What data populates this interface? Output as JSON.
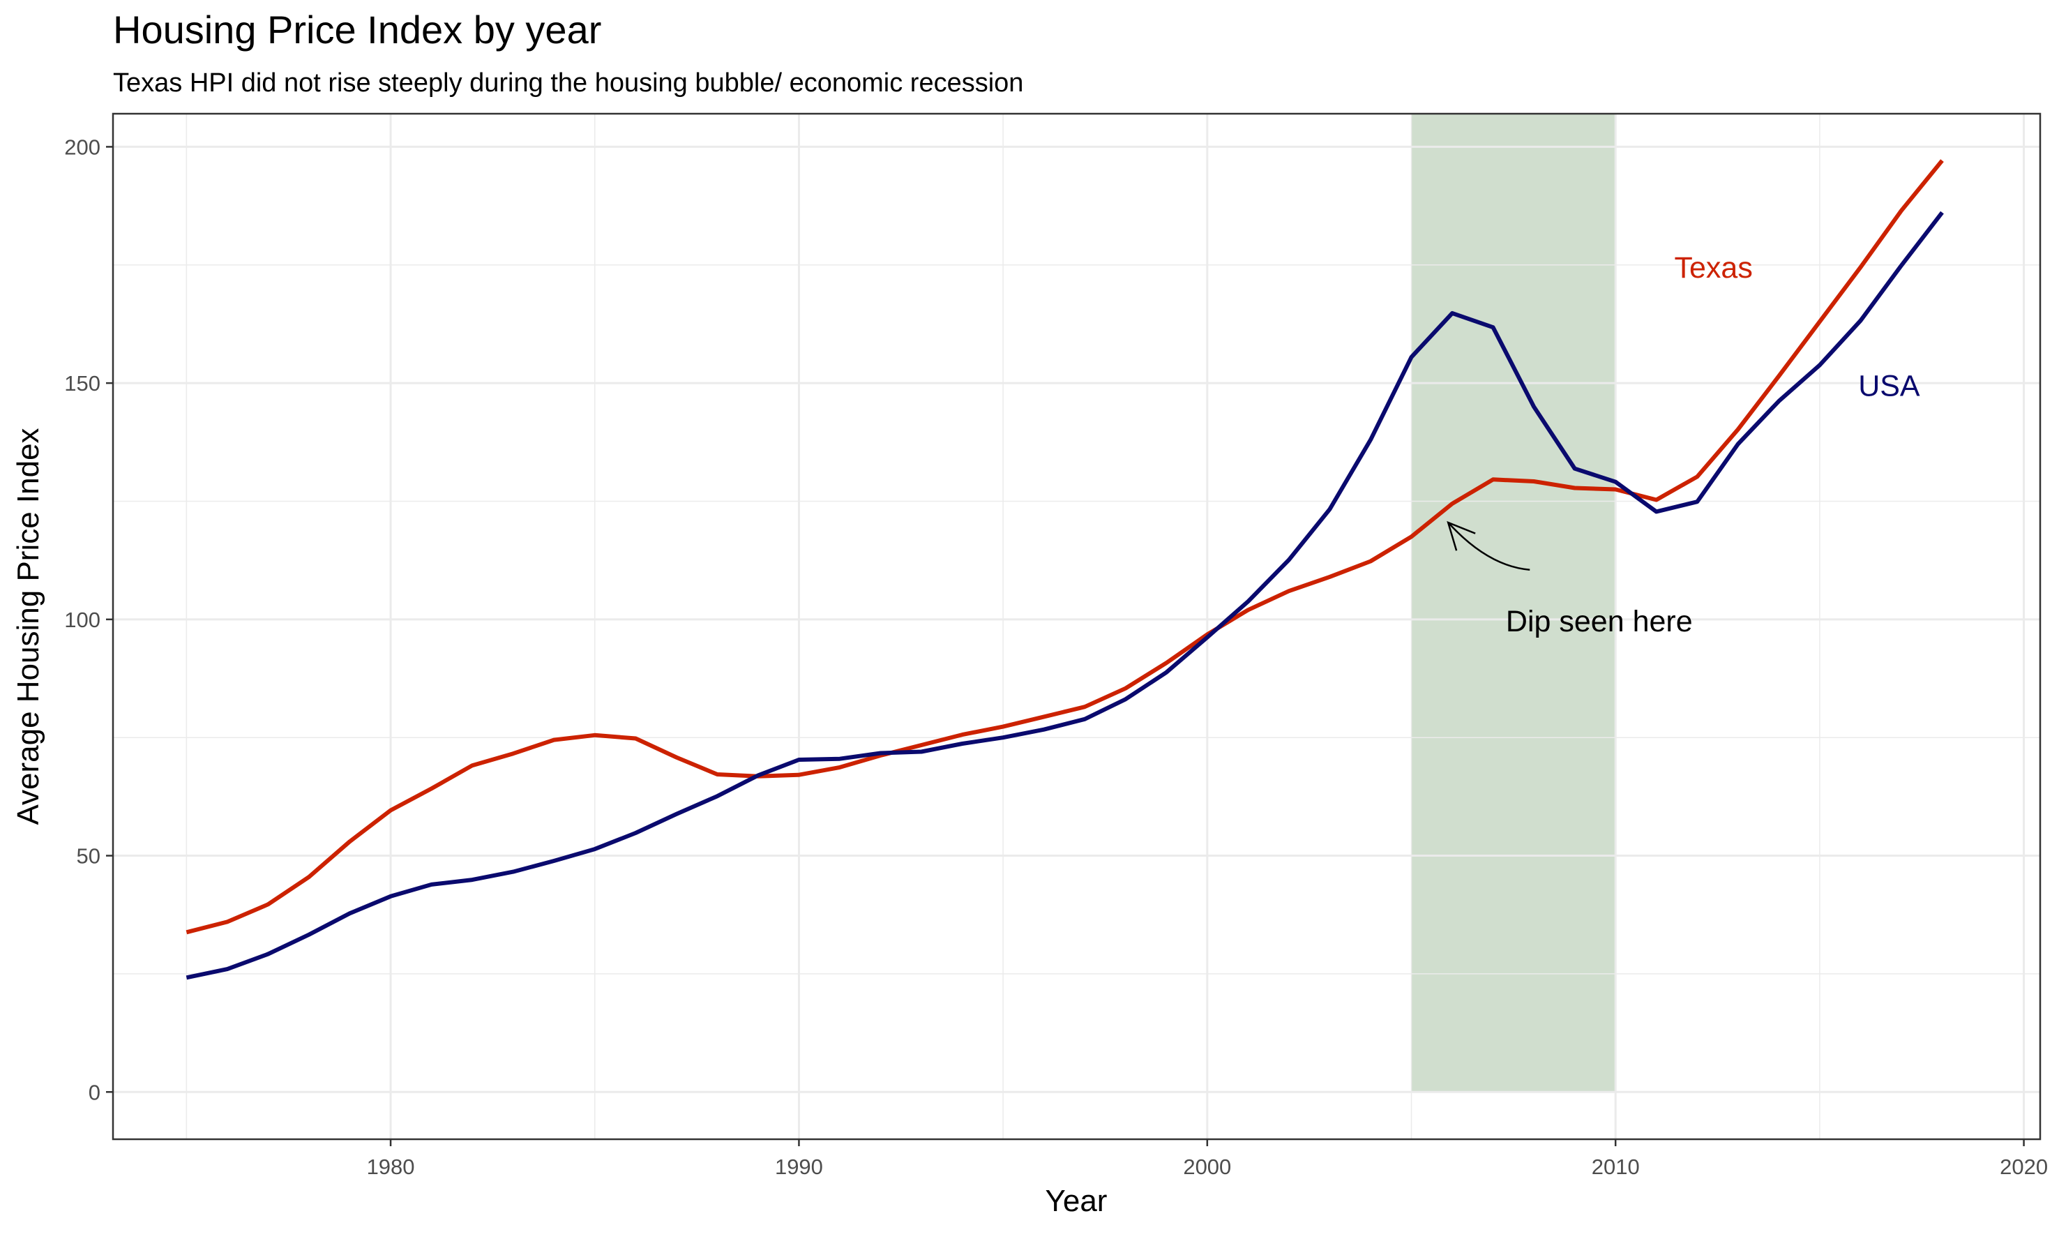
{
  "chart_data": {
    "type": "line",
    "title": "Housing Price Index by year",
    "subtitle": "Texas HPI did not rise steeply during the housing bubble/ economic recession",
    "xlabel": "Year",
    "ylabel": "Average Housing Price Index",
    "xlim": [
      1973.2,
      2020.4
    ],
    "ylim": [
      -10,
      207
    ],
    "x_ticks": [
      1980,
      1990,
      2000,
      2010,
      2020
    ],
    "x_tick_labels": [
      "1980",
      "1990",
      "2000",
      "2010",
      "2020"
    ],
    "x_minor_ticks": [
      1975,
      1985,
      1995,
      2005,
      2015
    ],
    "y_ticks": [
      0,
      50,
      100,
      150,
      200
    ],
    "y_tick_labels": [
      "0",
      "50",
      "100",
      "150",
      "200"
    ],
    "y_minor_ticks": [
      25,
      75,
      125,
      175
    ],
    "grid": true,
    "legend": "none",
    "colors": {
      "texas": "#cc2200",
      "usa": "#0a0a6e",
      "highlight": "#a9c2a6",
      "axis_text": "#4d4d4d",
      "grid": "#ebebeb"
    },
    "highlight_region": {
      "x_start": 2005,
      "x_end": 2010,
      "y_start": 0,
      "y_end": 207
    },
    "series": [
      {
        "name": "Texas",
        "color": "#cc2200",
        "x": [
          1975,
          1976,
          1977,
          1978,
          1979,
          1980,
          1981,
          1982,
          1983,
          1984,
          1985,
          1986,
          1987,
          1988,
          1989,
          1990,
          1991,
          1992,
          1993,
          1994,
          1995,
          1996,
          1997,
          1998,
          1999,
          2000,
          2001,
          2002,
          2003,
          2004,
          2005,
          2006,
          2007,
          2008,
          2009,
          2010,
          2011,
          2012,
          2013,
          2014,
          2015,
          2016,
          2017,
          2018
        ],
        "y": [
          33.8,
          36,
          39.7,
          45.5,
          53,
          59.6,
          64.2,
          69.1,
          71.6,
          74.5,
          75.5,
          74.8,
          70.8,
          67.2,
          66.8,
          67.1,
          68.7,
          71.2,
          73.4,
          75.6,
          77.3,
          79.4,
          81.5,
          85.4,
          90.8,
          96.8,
          102,
          106,
          109,
          112.3,
          117.5,
          124.5,
          129.6,
          129.2,
          127.8,
          127.5,
          125.3,
          130.2,
          140.2,
          151.5,
          163,
          174.5,
          186.5,
          197.1
        ]
      },
      {
        "name": "USA",
        "color": "#0a0a6e",
        "x": [
          1975,
          1976,
          1977,
          1978,
          1979,
          1980,
          1981,
          1982,
          1983,
          1984,
          1985,
          1986,
          1987,
          1988,
          1989,
          1990,
          1991,
          1992,
          1993,
          1994,
          1995,
          1996,
          1997,
          1998,
          1999,
          2000,
          2001,
          2002,
          2003,
          2004,
          2005,
          2006,
          2007,
          2008,
          2009,
          2010,
          2011,
          2012,
          2013,
          2014,
          2015,
          2016,
          2017,
          2018
        ],
        "y": [
          24.2,
          26,
          29.2,
          33.3,
          37.8,
          41.4,
          43.9,
          44.9,
          46.6,
          48.9,
          51.4,
          54.8,
          58.8,
          62.6,
          67,
          70.3,
          70.5,
          71.7,
          72,
          73.7,
          75,
          76.7,
          78.9,
          83.1,
          88.8,
          96.2,
          103.8,
          112.6,
          123.3,
          138,
          155.5,
          164.8,
          161.8,
          145,
          131.9,
          129.1,
          122.8,
          124.9,
          137.1,
          146.2,
          153.8,
          163.2,
          174.9,
          186.1
        ]
      }
    ],
    "annotations": [
      {
        "text": "Texas",
        "x": 2012.4,
        "y": 174.5,
        "color": "#cc2200"
      },
      {
        "text": "USA",
        "x": 2016.7,
        "y": 149.5,
        "color": "#0a0a6e"
      },
      {
        "text": "Dip seen here",
        "x": 2009.6,
        "y": 99.7,
        "color": "#000000"
      }
    ],
    "arrow": {
      "from": [
        2007.9,
        110.5
      ],
      "to": [
        2005.9,
        120.5
      ]
    }
  }
}
